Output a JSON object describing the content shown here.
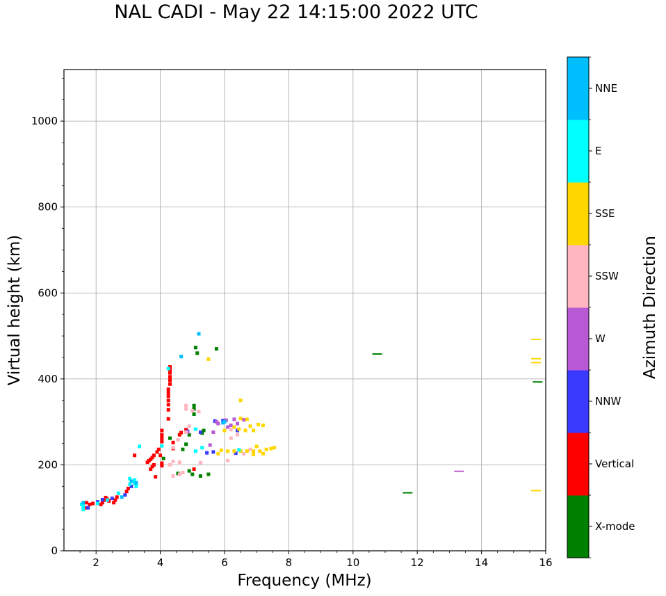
{
  "chart_data": {
    "type": "scatter",
    "title": "NAL CADI - May 22 14:15:00 2022 UTC",
    "xlabel": "Frequency (MHz)",
    "ylabel": "Virtual height (km)",
    "xlim": [
      1,
      16
    ],
    "ylim": [
      0,
      1120
    ],
    "xticks": [
      2,
      4,
      6,
      8,
      10,
      12,
      14,
      16
    ],
    "yticks": [
      0,
      200,
      400,
      600,
      800,
      1000
    ],
    "grid": true,
    "colorbar": {
      "label": "Azimuth Direction",
      "categories": [
        "X-mode",
        "Vertical",
        "NNW",
        "W",
        "SSW",
        "SSE",
        "E",
        "NNE"
      ],
      "colors": [
        "#008000",
        "#ff0000",
        "#3a3aff",
        "#b85ad6",
        "#ffb6c1",
        "#ffd700",
        "#00ffff",
        "#00bfff"
      ]
    },
    "series": [
      {
        "name": "X-mode",
        "points": [
          [
            5.1,
            473
          ],
          [
            5.15,
            460
          ],
          [
            5.75,
            470
          ],
          [
            5.05,
            338
          ],
          [
            5.05,
            330
          ],
          [
            5.05,
            318
          ],
          [
            5.3,
            274
          ],
          [
            5.35,
            280
          ],
          [
            4.3,
            262
          ],
          [
            4.9,
            270
          ],
          [
            4.8,
            248
          ],
          [
            4.7,
            236
          ],
          [
            4.1,
            215
          ],
          [
            4.55,
            180
          ],
          [
            4.9,
            186
          ],
          [
            5.0,
            178
          ],
          [
            5.25,
            174
          ],
          [
            5.5,
            178
          ],
          [
            10.75,
            458
          ],
          [
            11.7,
            135
          ],
          [
            15.75,
            393
          ]
        ]
      },
      {
        "name": "Vertical",
        "points": [
          [
            4.3,
            428
          ],
          [
            4.3,
            422
          ],
          [
            4.3,
            414
          ],
          [
            4.3,
            405
          ],
          [
            4.3,
            397
          ],
          [
            4.3,
            388
          ],
          [
            4.25,
            376
          ],
          [
            4.25,
            368
          ],
          [
            4.25,
            360
          ],
          [
            4.25,
            350
          ],
          [
            4.25,
            340
          ],
          [
            4.25,
            328
          ],
          [
            4.25,
            307
          ],
          [
            4.05,
            280
          ],
          [
            4.05,
            270
          ],
          [
            4.05,
            262
          ],
          [
            4.05,
            254
          ],
          [
            4.4,
            252
          ],
          [
            3.95,
            236
          ],
          [
            3.9,
            230
          ],
          [
            3.8,
            222
          ],
          [
            3.75,
            217
          ],
          [
            3.7,
            213
          ],
          [
            3.65,
            210
          ],
          [
            3.6,
            206
          ],
          [
            4.05,
            204
          ],
          [
            4.05,
            198
          ],
          [
            3.75,
            196
          ],
          [
            3.8,
            200
          ],
          [
            3.7,
            190
          ],
          [
            3.85,
            172
          ],
          [
            4.0,
            222
          ],
          [
            4.4,
            238
          ],
          [
            4.6,
            270
          ],
          [
            4.65,
            275
          ],
          [
            4.8,
            282
          ],
          [
            5.05,
            190
          ],
          [
            3.2,
            222
          ],
          [
            3.0,
            145
          ],
          [
            2.95,
            138
          ],
          [
            2.65,
            125
          ],
          [
            2.6,
            118
          ],
          [
            2.55,
            112
          ],
          [
            2.4,
            116
          ],
          [
            2.35,
            120
          ],
          [
            2.3,
            124
          ],
          [
            2.25,
            118
          ],
          [
            2.2,
            112
          ],
          [
            2.15,
            108
          ],
          [
            1.9,
            110
          ],
          [
            1.8,
            108
          ],
          [
            1.7,
            112
          ],
          [
            1.65,
            100
          ]
        ]
      },
      {
        "name": "NNW",
        "points": [
          [
            2.5,
            122
          ],
          [
            2.9,
            130
          ],
          [
            3.1,
            150
          ],
          [
            4.85,
            278
          ],
          [
            5.25,
            276
          ],
          [
            5.7,
            302
          ],
          [
            5.95,
            303
          ],
          [
            5.65,
            230
          ],
          [
            5.45,
            228
          ],
          [
            6.4,
            280
          ],
          [
            6.35,
            227
          ],
          [
            1.75,
            100
          ],
          [
            2.05,
            114
          ],
          [
            2.2,
            119
          ]
        ]
      },
      {
        "name": "W",
        "points": [
          [
            5.75,
            300
          ],
          [
            5.8,
            296
          ],
          [
            6.05,
            304
          ],
          [
            6.3,
            306
          ],
          [
            6.6,
            305
          ],
          [
            6.1,
            288
          ],
          [
            6.4,
            296
          ],
          [
            6.2,
            292
          ],
          [
            5.65,
            276
          ],
          [
            5.55,
            246
          ],
          [
            4.85,
            276
          ],
          [
            13.3,
            185
          ]
        ]
      },
      {
        "name": "SSW",
        "points": [
          [
            4.8,
            338
          ],
          [
            4.8,
            330
          ],
          [
            5.0,
            326
          ],
          [
            5.2,
            324
          ],
          [
            4.8,
            276
          ],
          [
            4.55,
            258
          ],
          [
            4.4,
            240
          ],
          [
            4.4,
            174
          ],
          [
            4.6,
            178
          ],
          [
            4.7,
            182
          ],
          [
            4.4,
            208
          ],
          [
            4.3,
            200
          ],
          [
            4.6,
            206
          ],
          [
            5.25,
            205
          ],
          [
            6.1,
            210
          ],
          [
            6.2,
            262
          ],
          [
            6.2,
            282
          ],
          [
            6.4,
            270
          ],
          [
            6.6,
            226
          ],
          [
            6.8,
            236
          ],
          [
            4.9,
            290
          ]
        ]
      },
      {
        "name": "SSE",
        "points": [
          [
            5.5,
            446
          ],
          [
            6.5,
            350
          ],
          [
            6.5,
            308
          ],
          [
            6.7,
            306
          ],
          [
            6.8,
            290
          ],
          [
            6.9,
            280
          ],
          [
            7.05,
            294
          ],
          [
            7.2,
            292
          ],
          [
            6.3,
            288
          ],
          [
            6.45,
            283
          ],
          [
            6.65,
            280
          ],
          [
            6.0,
            280
          ],
          [
            6.1,
            232
          ],
          [
            6.3,
            232
          ],
          [
            6.5,
            232
          ],
          [
            6.7,
            232
          ],
          [
            6.9,
            232
          ],
          [
            7.1,
            232
          ],
          [
            7.3,
            236
          ],
          [
            7.45,
            238
          ],
          [
            7.55,
            240
          ],
          [
            7.0,
            243
          ],
          [
            7.2,
            226
          ],
          [
            6.9,
            224
          ],
          [
            5.9,
            234
          ],
          [
            5.8,
            226
          ],
          [
            15.7,
            492
          ],
          [
            15.7,
            447
          ],
          [
            15.7,
            438
          ],
          [
            15.7,
            140
          ]
        ]
      },
      {
        "name": "E",
        "points": [
          [
            1.55,
            108
          ],
          [
            1.6,
            104
          ],
          [
            1.6,
            96
          ],
          [
            2.05,
            110
          ],
          [
            2.35,
            118
          ],
          [
            2.7,
            134
          ],
          [
            3.05,
            168
          ],
          [
            3.2,
            165
          ],
          [
            3.2,
            158
          ],
          [
            3.25,
            150
          ],
          [
            3.05,
            155
          ],
          [
            3.35,
            243
          ],
          [
            5.1,
            283
          ],
          [
            5.3,
            240
          ],
          [
            5.1,
            232
          ],
          [
            6.45,
            235
          ],
          [
            4.05,
            244
          ],
          [
            4.25,
            424
          ]
        ]
      },
      {
        "name": "NNE",
        "points": [
          [
            5.2,
            505
          ],
          [
            4.65,
            452
          ],
          [
            6.0,
            300
          ],
          [
            5.95,
            298
          ],
          [
            3.1,
            162
          ],
          [
            3.25,
            158
          ],
          [
            1.6,
            112
          ],
          [
            2.8,
            125
          ]
        ]
      }
    ]
  }
}
